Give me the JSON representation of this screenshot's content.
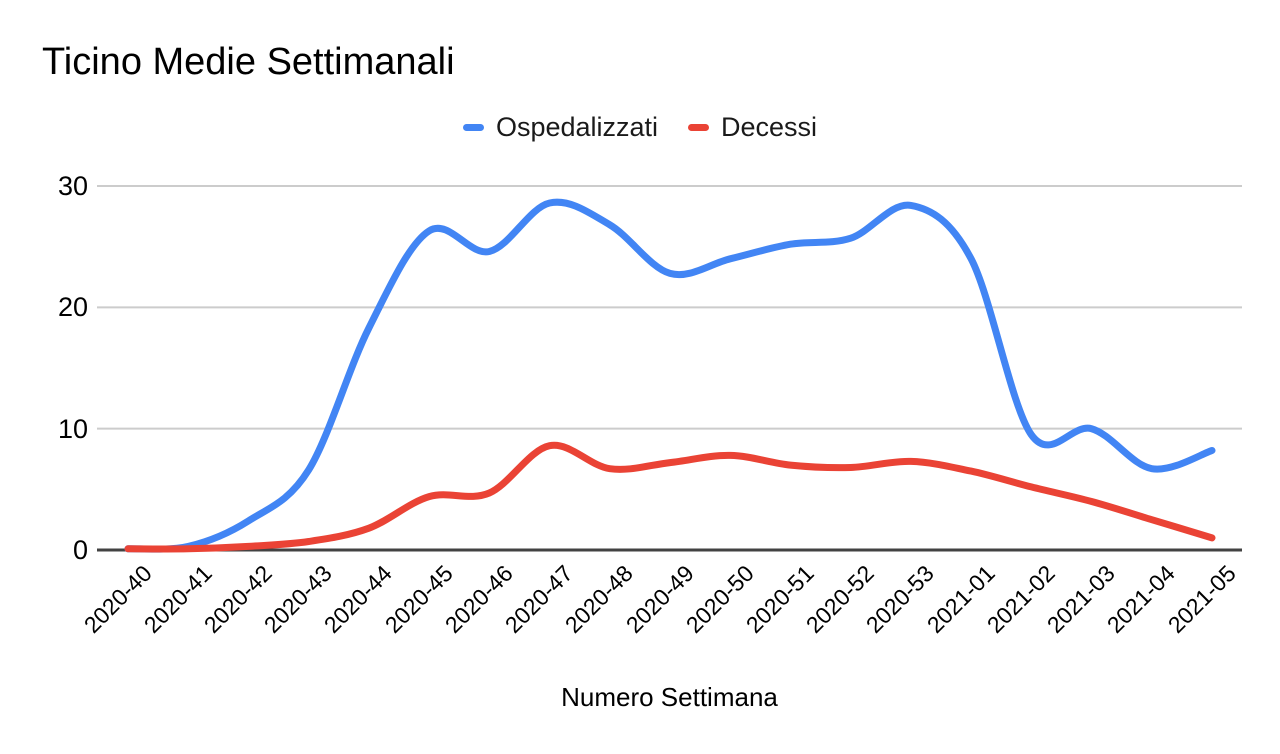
{
  "title": "Ticino Medie Settimanali",
  "legend": {
    "items": [
      {
        "label": "Ospedalizzati",
        "color": "#4285F4"
      },
      {
        "label": "Decessi",
        "color": "#EA4335"
      }
    ]
  },
  "x_axis_title": "Numero Settimana",
  "chart_data": {
    "type": "line",
    "title": "Ticino Medie Settimanali",
    "xlabel": "Numero Settimana",
    "ylabel": "",
    "line_style": "smooth",
    "grid": true,
    "legend_position": "top-center",
    "ylim": [
      0,
      30
    ],
    "yticks": [
      0,
      10,
      20,
      30
    ],
    "categories": [
      "2020-40",
      "2020-41",
      "2020-42",
      "2020-43",
      "2020-44",
      "2020-45",
      "2020-46",
      "2020-47",
      "2020-48",
      "2020-49",
      "2020-50",
      "2020-51",
      "2020-52",
      "2020-53",
      "2021-01",
      "2021-02",
      "2021-03",
      "2021-04",
      "2021-05"
    ],
    "series": [
      {
        "name": "Ospedalizzati",
        "color": "#4285F4",
        "values": [
          0.1,
          0.3,
          2.4,
          6.6,
          18.3,
          26.3,
          24.6,
          28.6,
          26.8,
          22.8,
          24.0,
          25.2,
          25.7,
          28.4,
          24.0,
          9.5,
          10.0,
          6.7,
          8.2
        ]
      },
      {
        "name": "Decessi",
        "color": "#EA4335",
        "values": [
          0.1,
          0.1,
          0.3,
          0.7,
          1.8,
          4.4,
          4.7,
          8.6,
          6.7,
          7.2,
          7.8,
          7.0,
          6.8,
          7.3,
          6.5,
          5.2,
          4.0,
          2.5,
          1.0
        ]
      }
    ],
    "gridline_color": "#cccccc",
    "baseline_color": "#424242"
  }
}
